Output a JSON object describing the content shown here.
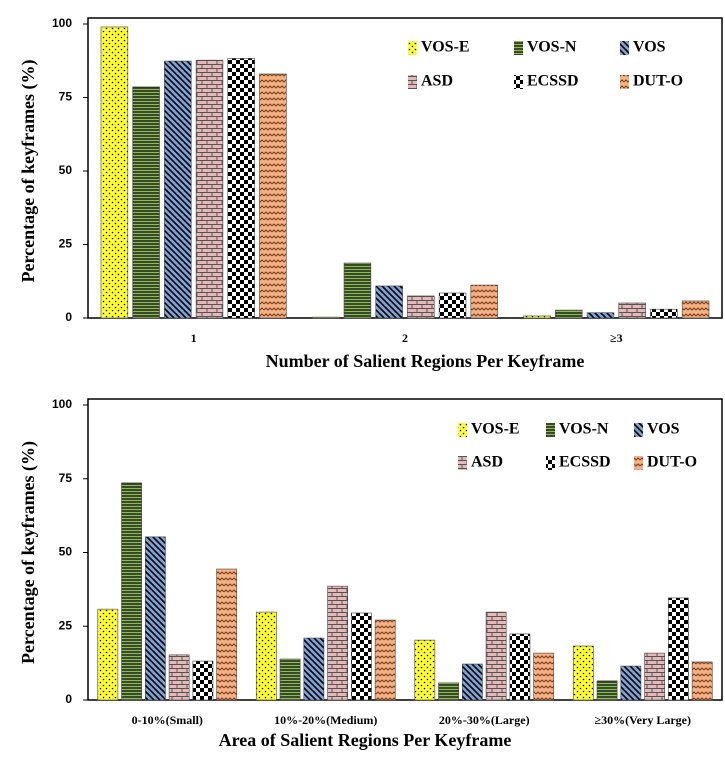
{
  "chart_data": [
    {
      "type": "bar",
      "ylabel": "Percentage of keyframes  (%)",
      "xlabel": "Number  of Salient Regions Per Keyframe",
      "categories": [
        "1",
        "2",
        "≥3"
      ],
      "ylim": [
        0,
        100
      ],
      "yticks": [
        0,
        25,
        50,
        75,
        100
      ],
      "series": [
        {
          "name": "VOS-E",
          "color": "#ffff33",
          "values": [
            99,
            0.3,
            0.7
          ]
        },
        {
          "name": "VOS-N",
          "color": "#8dbb5b",
          "values": [
            78.6,
            18.7,
            2.7
          ]
        },
        {
          "name": "VOS",
          "color": "#7da3d8",
          "values": [
            87.4,
            10.9,
            1.8
          ]
        },
        {
          "name": "ASD",
          "color": "#e6b8b7",
          "values": [
            87.7,
            7.5,
            5.1
          ]
        },
        {
          "name": "ECSSD",
          "color": "#000000",
          "values": [
            88.3,
            8.5,
            3
          ]
        },
        {
          "name": "DUT-O",
          "color": "#f4b183",
          "values": [
            83,
            11.2,
            5.8
          ]
        }
      ]
    },
    {
      "type": "bar",
      "ylabel": "Percentage of keyframes  (%)",
      "xlabel": "Area of Salient Regions Per Keyframe",
      "categories": [
        "0-10%(Small)",
        "10%-20%(Medium)",
        "20%-30%(Large)",
        "≥30%(Very Large)"
      ],
      "ylim": [
        0,
        100
      ],
      "yticks": [
        0,
        25,
        50,
        75,
        100
      ],
      "series": [
        {
          "name": "VOS-E",
          "color": "#ffff33",
          "values": [
            30.8,
            29.8,
            20.3,
            18.3
          ]
        },
        {
          "name": "VOS-N",
          "color": "#8dbb5b",
          "values": [
            73.6,
            13.9,
            5.8,
            6.5
          ]
        },
        {
          "name": "VOS",
          "color": "#7da3d8",
          "values": [
            55.3,
            21,
            12.2,
            11.5
          ]
        },
        {
          "name": "ASD",
          "color": "#e6b8b7",
          "values": [
            15.3,
            38.6,
            29.8,
            15.9
          ]
        },
        {
          "name": "ECSSD",
          "color": "#000000",
          "values": [
            13.2,
            29.5,
            22.4,
            34.6
          ]
        },
        {
          "name": "DUT-O",
          "color": "#f4b183",
          "values": [
            44.4,
            27.1,
            15.9,
            12.9
          ]
        }
      ]
    }
  ]
}
